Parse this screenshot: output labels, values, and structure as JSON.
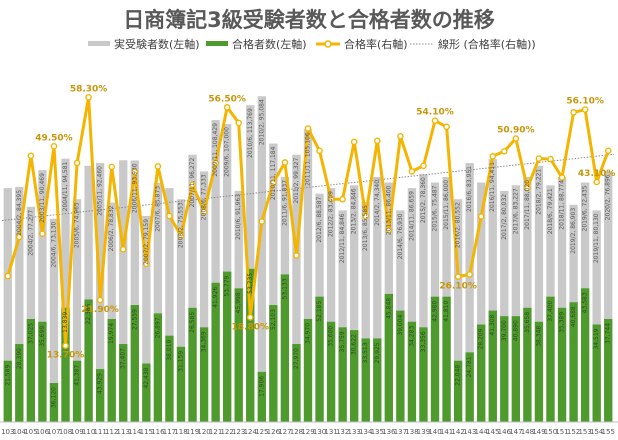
{
  "chart_data": {
    "type": "bar",
    "title": "日商簿記3級受験者数と合格者数の推移",
    "legend": {
      "placement": "top",
      "entries": [
        "実受験者数(左軸)",
        "合格者数(左軸)",
        "合格率(右軸)",
        "線形 (合格率(右軸))"
      ]
    },
    "colors": {
      "examinees": "#c9c9c9",
      "passers": "#4e9a2d",
      "rate": "#f4b400",
      "rate_marker_fill": "#ffffff",
      "trend": "#8c8c8c"
    },
    "categories": [
      "103",
      "104",
      "105",
      "106",
      "107",
      "108",
      "109",
      "110",
      "111",
      "112",
      "113",
      "114",
      "115",
      "116",
      "117",
      "118",
      "119",
      "120",
      "121",
      "122",
      "123",
      "124",
      "125",
      "126",
      "127",
      "128",
      "129",
      "130",
      "131",
      "132",
      "133",
      "134",
      "135",
      "136",
      "137",
      "138",
      "139",
      "140",
      "141",
      "142",
      "143",
      "144",
      "145",
      "146",
      "147",
      "148",
      "149",
      "150",
      "151",
      "152",
      "153",
      "154",
      "155"
    ],
    "series": [
      {
        "name": "実受験者数(左軸)",
        "values": [
          84000,
          84395,
          77277,
          90469,
          73000,
          94581,
          80000,
          92000,
          93000,
          78832,
          94000,
          93930,
          74000,
          85873,
          84000,
          80000,
          96000,
          90000,
          108429,
          107000,
          83000,
          113769,
          117000,
          100000,
          88000,
          96000,
          105106,
          82000,
          84000,
          76000,
          85000,
          79000,
          88000,
          86000,
          76000,
          84000,
          89000,
          86000,
          88000,
          80000,
          93000,
          86000,
          94411,
          83000,
          85000,
          88000,
          92000,
          85000,
          88000,
          78000,
          86000,
          76000,
          90000
        ]
      },
      {
        "name": "合格者数(左軸)",
        "values": [
          22000,
          28000,
          37000,
          36000,
          14000,
          41000,
          22000,
          44000,
          19000,
          37000,
          28000,
          42000,
          21000,
          39000,
          31000,
          27000,
          41000,
          34000,
          50000,
          54000,
          48000,
          55000,
          18000,
          42000,
          53000,
          28000,
          37000,
          45000,
          36000,
          34000,
          33000,
          30000,
          30000,
          46000,
          40000,
          36000,
          34000,
          45000,
          45000,
          22000,
          25000,
          35000,
          40000,
          38000,
          38000,
          41000,
          36000,
          45000,
          41000,
          43000,
          48000,
          35000,
          37000
        ]
      },
      {
        "name": "合格率(右軸)",
        "values": [
          26.2,
          33.2,
          47.8,
          33.8,
          49.5,
          13.7,
          46.5,
          58.3,
          21.9,
          45.8,
          31.0,
          44.9,
          28.4,
          45.9,
          37.0,
          33.5,
          42.6,
          37.8,
          46.5,
          56.5,
          53.7,
          18.8,
          36.0,
          43.0,
          46.6,
          29.9,
          52.7,
          48.7,
          40.0,
          40.0,
          50.3,
          37.0,
          50.5,
          34.5,
          51.3,
          45.0,
          46.0,
          54.1,
          53.0,
          26.1,
          26.5,
          36.9,
          47.7,
          48.6,
          50.9,
          42.0,
          47.3,
          47.2,
          43.9,
          55.6,
          56.1,
          43.1,
          48.7
        ]
      }
    ],
    "point_labels": [
      {
        "index": 4,
        "text": "49.50%"
      },
      {
        "index": 5,
        "text": "13.70%"
      },
      {
        "index": 7,
        "text": "58.30%"
      },
      {
        "index": 8,
        "text": "21.90%"
      },
      {
        "index": 19,
        "text": "56.50%"
      },
      {
        "index": 21,
        "text": "18.80%"
      },
      {
        "index": 37,
        "text": "54.10%"
      },
      {
        "index": 39,
        "text": "26.10%"
      },
      {
        "index": 44,
        "text": "50.90%"
      },
      {
        "index": 50,
        "text": "56.10%"
      },
      {
        "index": 51,
        "text": "43.10%"
      }
    ],
    "bar_labels": [
      {
        "index": 0,
        "top": "",
        "bottom": "21,589"
      },
      {
        "index": 1,
        "top": "2004/2, 84,395",
        "bottom": "28,390"
      },
      {
        "index": 2,
        "top": "2004/2, 77,277",
        "bottom": "37,025"
      },
      {
        "index": 3,
        "top": "2003/11, 90,469",
        "bottom": "35,699"
      },
      {
        "index": 4,
        "top": "2004/6, 73,130",
        "bottom": "36,120"
      },
      {
        "index": 5,
        "top": "2004/11, 94,581",
        "bottom": "13,839"
      },
      {
        "index": 6,
        "top": "2005/6, 74,965",
        "bottom": "41,387"
      },
      {
        "index": 7,
        "top": "",
        "bottom": "22,385"
      },
      {
        "index": 8,
        "top": "2005/11, 92,460",
        "bottom": "43,929"
      },
      {
        "index": 9,
        "top": "2006/2, 78,832",
        "bottom": "19,974"
      },
      {
        "index": 10,
        "top": "",
        "bottom": "37,407"
      },
      {
        "index": 11,
        "top": "2006/11, 93,930",
        "bottom": "27,559"
      },
      {
        "index": 12,
        "top": "2007/2, 79,159",
        "bottom": "42,438"
      },
      {
        "index": 13,
        "top": "2007/6, 85,873",
        "bottom": "26,897"
      },
      {
        "index": 14,
        "top": "",
        "bottom": "38,019"
      },
      {
        "index": 15,
        "top": "2008/2, 75,553",
        "bottom": "31,159"
      },
      {
        "index": 16,
        "top": "2007/11, 96,272",
        "bottom": "26,585"
      },
      {
        "index": 17,
        "top": "2008/6, 77,333",
        "bottom": "34,369"
      },
      {
        "index": 18,
        "top": "2009/11, 108,429",
        "bottom": "41,926"
      },
      {
        "index": 19,
        "top": "2009/6, 107,000",
        "bottom": "53,779"
      },
      {
        "index": 20,
        "top": "2010/6, 91,963",
        "bottom": "45,998"
      },
      {
        "index": 21,
        "top": "2010/6, 113,769",
        "bottom": "53,735"
      },
      {
        "index": 22,
        "top": "2010/2, 95,084",
        "bottom": "17,906"
      },
      {
        "index": 23,
        "top": "2010/11, 117,184",
        "bottom": "52,103"
      },
      {
        "index": 24,
        "top": "2011/6, 91,837",
        "bottom": "53,133"
      },
      {
        "index": 25,
        "top": "2011/2, 99,327",
        "bottom": "27,970"
      },
      {
        "index": 26,
        "top": "2011/11, 105,106",
        "bottom": "34,970"
      },
      {
        "index": 27,
        "top": "2012/6, 88,587",
        "bottom": "52,185"
      },
      {
        "index": 28,
        "top": "2012/2, 83,409",
        "bottom": "35,600"
      },
      {
        "index": 29,
        "top": "2012/11, 84,846",
        "bottom": "35,759"
      },
      {
        "index": 30,
        "top": "2013/2, 84,846",
        "bottom": "30,622"
      },
      {
        "index": 31,
        "top": "2013/6, 85,585",
        "bottom": "33,513"
      },
      {
        "index": 32,
        "top": "2014/2, 74,340",
        "bottom": "29,925"
      },
      {
        "index": 33,
        "top": "2013/11, 86,400",
        "bottom": "45,848"
      },
      {
        "index": 34,
        "top": "2014/6, 76,930",
        "bottom": "39,004"
      },
      {
        "index": 35,
        "top": "2014/11, 86,659",
        "bottom": "34,283"
      },
      {
        "index": 36,
        "top": "2015/2, 78,360",
        "bottom": "33,356"
      },
      {
        "index": 37,
        "top": "2015/6, 75,487",
        "bottom": "42,980"
      },
      {
        "index": 38,
        "top": "2015/11, 86,000",
        "bottom": "41,810"
      },
      {
        "index": 39,
        "top": "2016/2, 80,552",
        "bottom": "22,048"
      },
      {
        "index": 40,
        "top": "2016/6, 83,951",
        "bottom": "24,781"
      },
      {
        "index": 41,
        "top": "",
        "bottom": "28,209"
      },
      {
        "index": 42,
        "top": "2016/11, 94,411",
        "bottom": "41,308"
      },
      {
        "index": 43,
        "top": "2017/2, 80,032",
        "bottom": "39,700"
      },
      {
        "index": 44,
        "top": "2017/6, 83,227",
        "bottom": "40,890"
      },
      {
        "index": 45,
        "top": "2017/11, 88,020",
        "bottom": "35,658"
      },
      {
        "index": 46,
        "top": "2018/2, 79,221",
        "bottom": "38,348"
      },
      {
        "index": 47,
        "top": "2018/6, 79,421",
        "bottom": "37,400"
      },
      {
        "index": 48,
        "top": "2018/11, 88,774",
        "bottom": "35,389"
      },
      {
        "index": 49,
        "top": "2019/2, 86,903",
        "bottom": "40,688"
      },
      {
        "index": 50,
        "top": "2019/6, 72,435",
        "bottom": "43,583"
      },
      {
        "index": 51,
        "top": "2019/11, 80,130",
        "bottom": "34,519"
      },
      {
        "index": 52,
        "top": "2020/2, 76,896",
        "bottom": "37,744"
      }
    ],
    "ylim_left": [
      0,
      130000
    ],
    "ylim_right": [
      0,
      65
    ],
    "grid": false
  }
}
